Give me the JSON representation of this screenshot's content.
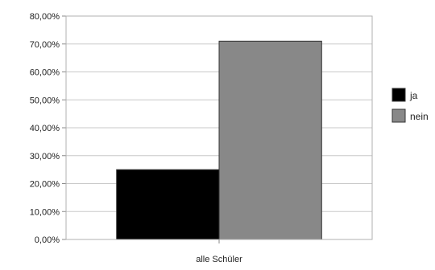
{
  "chart_data": {
    "type": "bar",
    "categories": [
      "alle Schüler"
    ],
    "series": [
      {
        "name": "ja",
        "values": [
          25.0
        ],
        "color": "#000000"
      },
      {
        "name": "nein",
        "values": [
          71.0
        ],
        "color": "#888888"
      }
    ],
    "ylim": [
      0,
      80
    ],
    "yticks": [
      "0,00%",
      "10,00%",
      "20,00%",
      "30,00%",
      "40,00%",
      "50,00%",
      "60,00%",
      "70,00%",
      "80,00%"
    ],
    "grid": true,
    "legend": "right",
    "plot_background": "#ffffff",
    "gridline_color": "#c8c8c8"
  }
}
